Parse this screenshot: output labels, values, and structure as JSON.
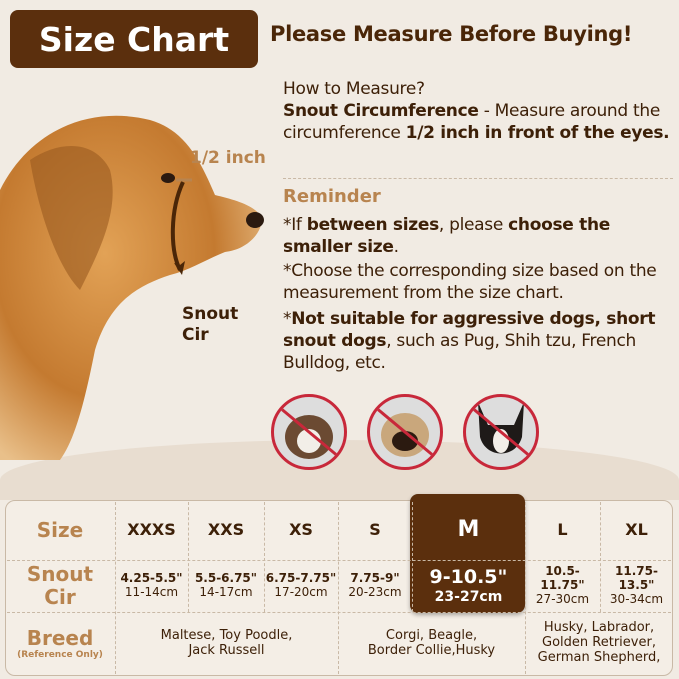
{
  "title": "Size Chart",
  "headline": "Please Measure Before Buying!",
  "dog_labels": {
    "half_inch": "1/2 inch",
    "snout_cir_1": "Snout",
    "snout_cir_2": "Cir"
  },
  "howto": {
    "heading": "How to Measure?",
    "term": "Snout Circumference",
    "desc": " - Measure around the circumference ",
    "emph": "1/2 inch in front of the eyes."
  },
  "reminder": {
    "title": "Reminder",
    "items": [
      {
        "p1": "*If ",
        "b1": "between sizes",
        "p2": ", please ",
        "b2": "choose the smaller size",
        "p3": "."
      },
      {
        "p1": "*Choose the corresponding size based on the measurement from the size chart."
      },
      {
        "p1": "*",
        "b1": "Not suitable for aggressive dogs, short snout dogs",
        "p2": ", such as Pug, Shih tzu, French Bulldog, etc."
      }
    ]
  },
  "unsuitable_dogs": [
    "shih-tzu",
    "pug",
    "french-bulldog"
  ],
  "colors": {
    "brand": "#5b2f0d",
    "accent": "#b8844f",
    "prohibit": "#c8283a"
  },
  "table": {
    "row_labels": {
      "size": "Size",
      "snout_1": "Snout",
      "snout_2": "Cir",
      "breed": "Breed",
      "breed_note": "(Reference Only)"
    },
    "sizes": [
      {
        "size": "XXXS",
        "inch": "4.25-5.5\"",
        "cm": "11-14cm"
      },
      {
        "size": "XXS",
        "inch": "5.5-6.75\"",
        "cm": "14-17cm"
      },
      {
        "size": "XS",
        "inch": "6.75-7.75\"",
        "cm": "17-20cm"
      },
      {
        "size": "S",
        "inch": "7.75-9\"",
        "cm": "20-23cm"
      },
      {
        "size": "M",
        "inch": "9-10.5\"",
        "cm": "23-27cm",
        "highlighted": true
      },
      {
        "size": "L",
        "inch": "10.5-11.75\"",
        "cm": "27-30cm"
      },
      {
        "size": "XL",
        "inch": "11.75-13.5\"",
        "cm": "30-34cm"
      }
    ],
    "breeds": [
      {
        "l1": "Maltese, Toy Poodle,",
        "l2": "Jack Russell"
      },
      {
        "l1": "Corgi, Beagle,",
        "l2": "Border Collie,Husky"
      },
      {
        "l1": "Husky, Labrador,",
        "l2": "Golden Retriever,",
        "l3": "German Shepherd,"
      }
    ]
  }
}
